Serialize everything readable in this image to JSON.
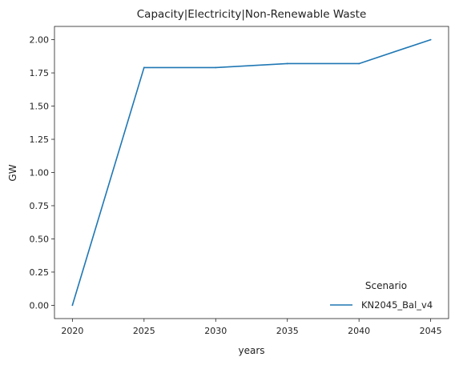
{
  "chart_data": {
    "type": "line",
    "title": "Capacity|Electricity|Non-Renewable Waste",
    "xlabel": "years",
    "ylabel": "GW",
    "x": [
      2020,
      2025,
      2030,
      2035,
      2040,
      2045
    ],
    "xticks": [
      "2020",
      "2025",
      "2030",
      "2035",
      "2040",
      "2045"
    ],
    "yticks": [
      "0.00",
      "0.25",
      "0.50",
      "0.75",
      "1.00",
      "1.25",
      "1.50",
      "1.75",
      "2.00"
    ],
    "xlim": [
      2018.75,
      2046.25
    ],
    "ylim": [
      -0.1,
      2.1
    ],
    "grid": false,
    "legend": {
      "title": "Scenario",
      "position": "lower-right"
    },
    "series": [
      {
        "name": "KN2045_Bal_v4",
        "color": "#1f77b4",
        "values": [
          0.0,
          1.79,
          1.79,
          1.82,
          1.82,
          2.0
        ]
      }
    ]
  }
}
